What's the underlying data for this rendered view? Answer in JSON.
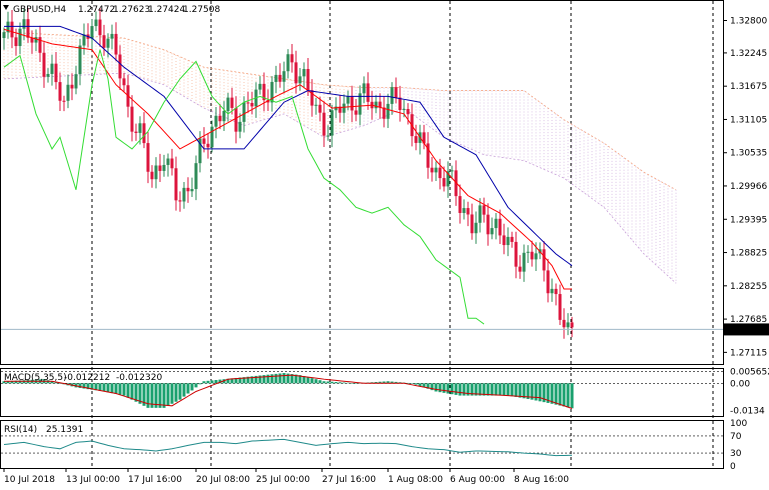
{
  "header": {
    "symbol": "GBPUSD,H4",
    "open": "1.27472",
    "high": "1.27623",
    "low": "1.27424",
    "close": "1.27508"
  },
  "price_axis": {
    "labels": [
      "1.32800",
      "1.32245",
      "1.31675",
      "1.31105",
      "1.30535",
      "1.29966",
      "1.29395",
      "1.28825",
      "1.28255",
      "1.27685",
      "1.27115"
    ],
    "current_price": "1.27508"
  },
  "macd": {
    "title": "MACD(5,35,5)",
    "main": "-0.012212",
    "signal": "-0.012320",
    "axis_labels": [
      "0.005652",
      "0.00",
      "-0.0134"
    ]
  },
  "rsi": {
    "title": "RSI(14)",
    "value": "25.1391",
    "axis_labels": [
      "100",
      "70",
      "30",
      "0"
    ]
  },
  "time_axis": {
    "labels": [
      "10 Jul 2018",
      "13 Jul 00:00",
      "17 Jul 16:00",
      "20 Jul 08:00",
      "25 Jul 00:00",
      "27 Jul 16:00",
      "1 Aug 08:00",
      "6 Aug 00:00",
      "8 Aug 16:00"
    ]
  },
  "colors": {
    "bull": "#2e8b57",
    "bear": "#dc143c",
    "tenkan": "#ff0000",
    "kijun": "#0000aa",
    "chikou": "#33dd33",
    "cloud_a": "#f4a582",
    "cloud_b": "#c8a0d8",
    "macd_hist": "#1aa06e",
    "macd_signal": "#cc0000",
    "rsi_line": "#1f8a8a"
  },
  "chart_data": {
    "type": "candlestick",
    "title": "GBPUSD,H4",
    "ylim": [
      1.2695,
      1.331
    ],
    "x_labels": [
      "10 Jul 2018",
      "13 Jul 00:00",
      "17 Jul 16:00",
      "20 Jul 08:00",
      "25 Jul 00:00",
      "27 Jul 16:00",
      "1 Aug 08:00",
      "6 Aug 00:00",
      "8 Aug 16:00"
    ],
    "close_anchors": [
      [
        0,
        1.325
      ],
      [
        5,
        1.327
      ],
      [
        8,
        1.323
      ],
      [
        12,
        1.319
      ],
      [
        15,
        1.313
      ],
      [
        18,
        1.321
      ],
      [
        22,
        1.327
      ],
      [
        25,
        1.326
      ],
      [
        28,
        1.322
      ],
      [
        31,
        1.313
      ],
      [
        34,
        1.308
      ],
      [
        37,
        1.301
      ],
      [
        40,
        1.305
      ],
      [
        43,
        1.298
      ],
      [
        46,
        1.299
      ],
      [
        49,
        1.305
      ],
      [
        52,
        1.31
      ],
      [
        55,
        1.313
      ],
      [
        58,
        1.311
      ],
      [
        61,
        1.314
      ],
      [
        64,
        1.315
      ],
      [
        67,
        1.317
      ],
      [
        70,
        1.319
      ],
      [
        72,
        1.321
      ],
      [
        75,
        1.318
      ],
      [
        78,
        1.312
      ],
      [
        81,
        1.31
      ],
      [
        84,
        1.313
      ],
      [
        87,
        1.314
      ],
      [
        90,
        1.315
      ],
      [
        93,
        1.313
      ],
      [
        96,
        1.314
      ],
      [
        99,
        1.314
      ],
      [
        102,
        1.31
      ],
      [
        105,
        1.305
      ],
      [
        108,
        1.302
      ],
      [
        111,
        1.301
      ],
      [
        114,
        1.297
      ],
      [
        117,
        1.293
      ],
      [
        120,
        1.294
      ],
      [
        123,
        1.293
      ],
      [
        126,
        1.289
      ],
      [
        129,
        1.287
      ],
      [
        132,
        1.288
      ],
      [
        135,
        1.286
      ],
      [
        137,
        1.282
      ],
      [
        139,
        1.277
      ],
      [
        141,
        1.2745
      ],
      [
        142,
        1.2751
      ]
    ],
    "tenkan_anchors": [
      [
        0,
        1.3265
      ],
      [
        12,
        1.324
      ],
      [
        22,
        1.323
      ],
      [
        28,
        1.317
      ],
      [
        36,
        1.312
      ],
      [
        44,
        1.306
      ],
      [
        52,
        1.309
      ],
      [
        60,
        1.312
      ],
      [
        68,
        1.315
      ],
      [
        74,
        1.317
      ],
      [
        82,
        1.313
      ],
      [
        92,
        1.3135
      ],
      [
        100,
        1.312
      ],
      [
        108,
        1.304
      ],
      [
        116,
        1.298
      ],
      [
        124,
        1.295
      ],
      [
        132,
        1.29
      ],
      [
        137,
        1.286
      ],
      [
        140,
        1.282
      ],
      [
        142,
        1.282
      ]
    ],
    "kijun_anchors": [
      [
        0,
        1.327
      ],
      [
        14,
        1.327
      ],
      [
        22,
        1.325
      ],
      [
        30,
        1.32
      ],
      [
        40,
        1.315
      ],
      [
        50,
        1.306
      ],
      [
        60,
        1.306
      ],
      [
        70,
        1.314
      ],
      [
        76,
        1.316
      ],
      [
        86,
        1.315
      ],
      [
        96,
        1.315
      ],
      [
        104,
        1.314
      ],
      [
        110,
        1.308
      ],
      [
        118,
        1.305
      ],
      [
        126,
        1.296
      ],
      [
        132,
        1.292
      ],
      [
        138,
        1.288
      ],
      [
        142,
        1.286
      ]
    ],
    "chikou_anchors": [
      [
        0,
        1.32
      ],
      [
        4,
        1.322
      ],
      [
        8,
        1.312
      ],
      [
        12,
        1.306
      ],
      [
        14,
        1.308
      ],
      [
        18,
        1.299
      ],
      [
        22,
        1.317
      ],
      [
        24,
        1.323
      ],
      [
        26,
        1.318
      ],
      [
        28,
        1.308
      ],
      [
        32,
        1.306
      ],
      [
        36,
        1.309
      ],
      [
        40,
        1.314
      ],
      [
        44,
        1.318
      ],
      [
        48,
        1.321
      ],
      [
        52,
        1.315
      ],
      [
        56,
        1.312
      ],
      [
        60,
        1.314
      ],
      [
        64,
        1.315
      ],
      [
        68,
        1.314
      ],
      [
        72,
        1.315
      ],
      [
        76,
        1.306
      ],
      [
        80,
        1.301
      ],
      [
        84,
        1.299
      ],
      [
        88,
        1.296
      ],
      [
        92,
        1.295
      ],
      [
        96,
        1.296
      ],
      [
        100,
        1.293
      ],
      [
        104,
        1.291
      ],
      [
        108,
        1.287
      ],
      [
        112,
        1.285
      ],
      [
        114,
        1.284
      ],
      [
        116,
        1.277
      ],
      [
        118,
        1.277
      ],
      [
        120,
        1.276
      ]
    ],
    "cloud_top_anchors": [
      [
        0,
        1.326
      ],
      [
        30,
        1.325
      ],
      [
        40,
        1.323
      ],
      [
        50,
        1.32
      ],
      [
        60,
        1.319
      ],
      [
        70,
        1.318
      ],
      [
        80,
        1.317
      ],
      [
        90,
        1.3165
      ],
      [
        100,
        1.3165
      ],
      [
        110,
        1.316
      ],
      [
        120,
        1.316
      ],
      [
        130,
        1.316
      ],
      [
        140,
        1.311
      ],
      [
        150,
        1.307
      ],
      [
        160,
        1.302
      ],
      [
        168,
        1.299
      ]
    ],
    "cloud_bottom_anchors": [
      [
        0,
        1.318
      ],
      [
        30,
        1.319
      ],
      [
        40,
        1.317
      ],
      [
        50,
        1.313
      ],
      [
        60,
        1.31
      ],
      [
        70,
        1.312
      ],
      [
        80,
        1.308
      ],
      [
        90,
        1.31
      ],
      [
        100,
        1.313
      ],
      [
        110,
        1.308
      ],
      [
        120,
        1.305
      ],
      [
        130,
        1.304
      ],
      [
        140,
        1.301
      ],
      [
        150,
        1.296
      ],
      [
        160,
        1.288
      ],
      [
        168,
        1.283
      ]
    ],
    "total_bars": 169,
    "macd_hist_anchors": [
      [
        0,
        0.001
      ],
      [
        10,
        0.002
      ],
      [
        18,
        -0.002
      ],
      [
        25,
        -0.004
      ],
      [
        30,
        -0.006
      ],
      [
        36,
        -0.012
      ],
      [
        40,
        -0.012
      ],
      [
        44,
        -0.008
      ],
      [
        50,
        0.001
      ],
      [
        55,
        0.002
      ],
      [
        60,
        0.003
      ],
      [
        65,
        0.004
      ],
      [
        70,
        0.005
      ],
      [
        74,
        0.004
      ],
      [
        80,
        0.001
      ],
      [
        88,
        0.0
      ],
      [
        96,
        0.001
      ],
      [
        102,
        0.0
      ],
      [
        108,
        -0.004
      ],
      [
        114,
        -0.006
      ],
      [
        120,
        -0.006
      ],
      [
        126,
        -0.006
      ],
      [
        132,
        -0.008
      ],
      [
        137,
        -0.01
      ],
      [
        142,
        -0.0122
      ]
    ],
    "macd_signal_anchors": [
      [
        0,
        0.001
      ],
      [
        12,
        0.001
      ],
      [
        20,
        -0.002
      ],
      [
        28,
        -0.005
      ],
      [
        36,
        -0.01
      ],
      [
        42,
        -0.011
      ],
      [
        48,
        -0.004
      ],
      [
        56,
        0.002
      ],
      [
        64,
        0.003
      ],
      [
        72,
        0.004
      ],
      [
        80,
        0.002
      ],
      [
        90,
        0.0
      ],
      [
        100,
        0.0
      ],
      [
        108,
        -0.003
      ],
      [
        116,
        -0.005
      ],
      [
        126,
        -0.006
      ],
      [
        134,
        -0.007
      ],
      [
        142,
        -0.0123
      ]
    ],
    "macd_ylim": [
      -0.015,
      0.006
    ],
    "rsi_anchors": [
      [
        0,
        50
      ],
      [
        5,
        55
      ],
      [
        10,
        45
      ],
      [
        14,
        40
      ],
      [
        18,
        55
      ],
      [
        22,
        58
      ],
      [
        26,
        48
      ],
      [
        30,
        40
      ],
      [
        34,
        38
      ],
      [
        38,
        35
      ],
      [
        42,
        40
      ],
      [
        46,
        48
      ],
      [
        50,
        55
      ],
      [
        54,
        55
      ],
      [
        58,
        52
      ],
      [
        62,
        58
      ],
      [
        66,
        60
      ],
      [
        70,
        62
      ],
      [
        74,
        55
      ],
      [
        78,
        48
      ],
      [
        82,
        52
      ],
      [
        86,
        55
      ],
      [
        90,
        52
      ],
      [
        94,
        53
      ],
      [
        98,
        52
      ],
      [
        102,
        45
      ],
      [
        106,
        40
      ],
      [
        110,
        38
      ],
      [
        114,
        32
      ],
      [
        118,
        35
      ],
      [
        122,
        34
      ],
      [
        126,
        33
      ],
      [
        130,
        30
      ],
      [
        134,
        28
      ],
      [
        138,
        24
      ],
      [
        142,
        25.1
      ]
    ],
    "rsi_ylim": [
      0,
      100
    ]
  }
}
